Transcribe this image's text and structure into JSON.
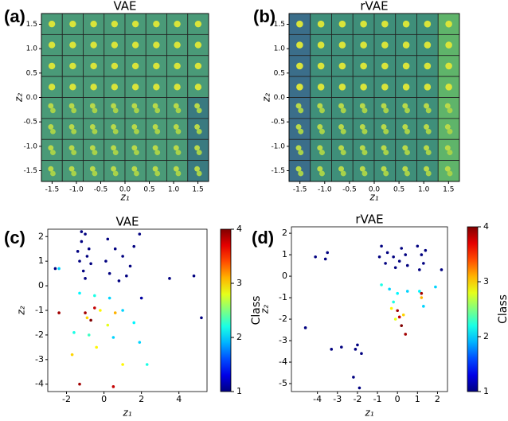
{
  "chart_data": [
    {
      "type": "image-grid",
      "panel_label": "(a)",
      "title": "VAE",
      "xlabel": "z₁",
      "ylabel": "z₂",
      "xlim": [
        -1.72,
        1.72
      ],
      "ylim": [
        -1.72,
        1.72
      ],
      "xticks": [
        -1.5,
        {
          "value": -1,
          "label": "-1.0"
        },
        -0.5,
        {
          "value": 0,
          "label": "0.0"
        },
        0.5,
        {
          "value": 1,
          "label": "1.0"
        },
        1.5
      ],
      "yticks": [
        1.5,
        {
          "value": 1,
          "label": "1.0"
        },
        0.5,
        {
          "value": 0,
          "label": "0.0"
        },
        -0.5,
        {
          "value": -1,
          "label": "-1.0"
        },
        -1.5
      ]
    },
    {
      "type": "image-grid",
      "panel_label": "(b)",
      "title": "rVAE",
      "xlabel": "z₁",
      "ylabel": "z₂",
      "xlim": [
        -1.72,
        1.72
      ],
      "ylim": [
        -1.72,
        1.72
      ],
      "xticks": [
        -1.5,
        {
          "value": -1,
          "label": "-1.0"
        },
        -0.5,
        {
          "value": 0,
          "label": "0.0"
        },
        0.5,
        {
          "value": 1,
          "label": "1.0"
        },
        1.5
      ],
      "yticks": [
        1.5,
        {
          "value": 1,
          "label": "1.0"
        },
        0.5,
        {
          "value": 0,
          "label": "0.0"
        },
        -0.5,
        {
          "value": -1,
          "label": "-1.0"
        },
        -1.5
      ]
    },
    {
      "type": "scatter",
      "panel_label": "(c)",
      "title": "VAE",
      "xlabel": "z₁",
      "ylabel": "z₂",
      "xlim": [
        -3,
        5.5
      ],
      "ylim": [
        -4.3,
        2.3
      ],
      "xticks": [
        -2,
        0,
        2,
        4
      ],
      "yticks": [
        2,
        1,
        0,
        -1,
        -2,
        -3,
        -4
      ],
      "colormap": "jet",
      "clim": [
        1,
        4
      ],
      "cticks": [
        1,
        2,
        3,
        4
      ],
      "colorbar_label": "Class",
      "x": [
        -1.2,
        -1.0,
        -0.8,
        -1.3,
        -1.1,
        -0.9,
        -1.4,
        -0.7,
        -1.0,
        -1.2,
        0.2,
        0.6,
        1.0,
        1.4,
        0.3,
        0.8,
        1.6,
        1.9,
        0.1,
        1.2,
        -1.3,
        -0.5,
        0.3,
        1.0,
        1.6,
        -1.6,
        0.5,
        1.9,
        -0.8,
        2.3,
        -2.4,
        -0.9,
        -0.2,
        0.2,
        -0.4,
        0.6,
        -1.7,
        1.0,
        -1.0,
        -0.7,
        -0.5,
        -2.4,
        -1.3,
        0.5,
        3.5,
        4.8,
        5.2,
        2.0,
        -2.6
      ],
      "y": [
        1.8,
        2.1,
        1.5,
        1.0,
        0.6,
        1.2,
        1.4,
        0.9,
        0.3,
        2.2,
        1.9,
        1.5,
        1.2,
        0.8,
        0.5,
        0.2,
        1.6,
        2.1,
        1.0,
        0.4,
        -0.3,
        -0.4,
        -0.5,
        -1.0,
        -1.5,
        -1.9,
        -2.1,
        -2.3,
        -2.0,
        -3.2,
        0.7,
        -1.3,
        -1.0,
        -1.6,
        -2.5,
        -1.1,
        -2.8,
        -3.2,
        -1.1,
        -1.4,
        -0.9,
        -1.1,
        -4.0,
        -4.1,
        0.3,
        0.4,
        -1.3,
        -0.5,
        0.7
      ],
      "class": [
        1,
        1,
        1,
        1,
        1,
        1,
        1,
        1,
        1,
        1,
        1,
        1,
        1,
        1,
        1,
        1,
        1,
        1,
        1,
        1,
        2.1,
        2.2,
        2.0,
        2.0,
        2.1,
        2.2,
        2.0,
        2.0,
        2.3,
        2.2,
        2.0,
        3.0,
        2.9,
        2.8,
        2.9,
        3.1,
        3.0,
        2.9,
        3.9,
        4.0,
        3.8,
        3.9,
        3.9,
        3.8,
        1,
        1,
        1,
        1.1,
        1
      ]
    },
    {
      "type": "scatter",
      "panel_label": "(d)",
      "title": "rVAE",
      "xlabel": "z₁",
      "ylabel": "z₂",
      "xlim": [
        -5.3,
        2.5
      ],
      "ylim": [
        -5.37,
        2.3
      ],
      "xticks": [
        -4,
        -3,
        -2,
        -1,
        0,
        1,
        2
      ],
      "yticks": [
        2,
        1,
        0,
        -1,
        -2,
        -3,
        -4,
        -5
      ],
      "colormap": "jet",
      "clim": [
        1,
        4
      ],
      "cticks": [
        1,
        2,
        3,
        4
      ],
      "colorbar_label": "Class",
      "x": [
        -0.8,
        -0.5,
        -0.2,
        0.1,
        0.4,
        -0.6,
        0.2,
        -0.1,
        0.5,
        -0.9,
        1.0,
        1.2,
        1.3,
        1.1,
        1.4,
        -4.1,
        -3.6,
        -3.5,
        2.2,
        -4.6,
        -3.3,
        -2.8,
        -2.1,
        -1.8,
        -2.2,
        -1.9,
        -2.0,
        -0.4,
        0.0,
        0.5,
        -0.2,
        1.1,
        1.3,
        1.9,
        -0.8,
        -0.3,
        0.3,
        1.2,
        -0.1,
        0.0,
        0.2,
        0.1,
        0.4,
        1.2
      ],
      "y": [
        1.4,
        1.1,
        0.9,
        0.7,
        1.0,
        0.6,
        1.3,
        0.4,
        0.5,
        0.9,
        1.4,
        1.0,
        0.6,
        0.3,
        1.2,
        0.9,
        0.8,
        1.1,
        0.3,
        -2.4,
        -3.4,
        -3.3,
        -3.4,
        -3.6,
        -4.7,
        -5.2,
        -3.2,
        -0.6,
        -0.8,
        -0.7,
        -1.2,
        -0.7,
        -1.4,
        -0.5,
        -0.4,
        -1.5,
        -1.8,
        -1.0,
        -2.0,
        -1.6,
        -2.3,
        -1.9,
        -2.7,
        -0.8
      ],
      "class": [
        1,
        1,
        1,
        1,
        1,
        1,
        1,
        1,
        1,
        1,
        1,
        1,
        1,
        1,
        1,
        1,
        1,
        1,
        1,
        1,
        1,
        1,
        1,
        1,
        1,
        1,
        1,
        2.0,
        2.1,
        2.0,
        2.2,
        2.1,
        2.0,
        2.0,
        2.2,
        2.9,
        3.0,
        3.1,
        2.8,
        3.9,
        4.0,
        3.8,
        3.9,
        3.9
      ]
    }
  ]
}
